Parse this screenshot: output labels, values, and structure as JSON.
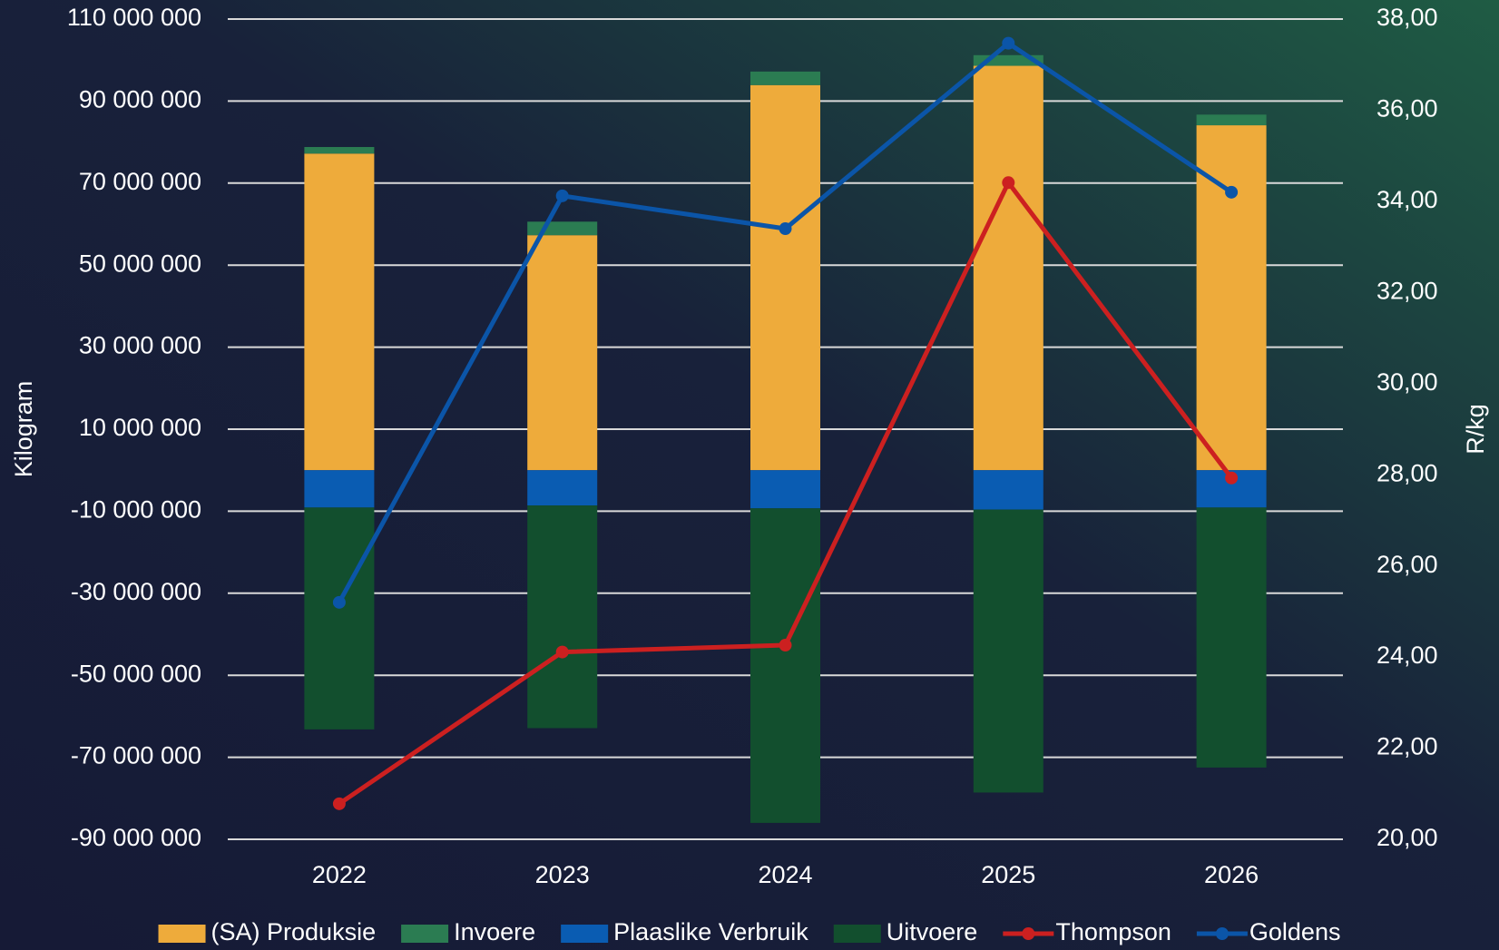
{
  "chart_data": {
    "type": "bar",
    "stacked": true,
    "y_label": "Kilogram",
    "y2_label": "R/kg",
    "categories": [
      "2022",
      "2023",
      "2024",
      "2025",
      "2026"
    ],
    "series": [
      {
        "name": "(SA) Produksie",
        "color": "#eeab3b",
        "values": [
          77200000,
          57300000,
          93900000,
          98600000,
          84100000
        ]
      },
      {
        "name": "Invoere",
        "color": "#2b7c52",
        "values": [
          1600000,
          3300000,
          3300000,
          2600000,
          2600000
        ]
      },
      {
        "name": "Plaaslike Verbruik",
        "color": "#0a5cb2",
        "values": [
          -9100000,
          -8600000,
          -9300000,
          -9600000,
          -9100000
        ]
      },
      {
        "name": "Uitvoere",
        "color": "#124f2e",
        "values": [
          -54100000,
          -54300000,
          -76700000,
          -69000000,
          -63400000
        ]
      },
      {
        "name": "Thompson",
        "color": "#cc2020",
        "type": "line",
        "axis": "y2",
        "values": [
          20.78,
          24.11,
          24.26,
          34.41,
          27.93
        ]
      },
      {
        "name": "Goldens",
        "color": "#0b55a8",
        "type": "line",
        "axis": "y2",
        "values": [
          25.2,
          34.12,
          33.4,
          37.47,
          34.2
        ]
      }
    ],
    "ylim": [
      -90000000,
      110000000
    ],
    "yticks": [
      {
        "value": 110000000,
        "label": "110 000 000"
      },
      {
        "value": 90000000,
        "label": "90 000 000"
      },
      {
        "value": 70000000,
        "label": "70 000 000"
      },
      {
        "value": 50000000,
        "label": "50 000 000"
      },
      {
        "value": 30000000,
        "label": "30 000 000"
      },
      {
        "value": 10000000,
        "label": "10 000 000"
      },
      {
        "value": -10000000,
        "label": "-10 000 000"
      },
      {
        "value": -30000000,
        "label": "-30 000 000"
      },
      {
        "value": -50000000,
        "label": "-50 000 000"
      },
      {
        "value": -70000000,
        "label": "-70 000 000"
      },
      {
        "value": -90000000,
        "label": "-90 000 000"
      }
    ],
    "y2lim": [
      20,
      38
    ],
    "y2ticks": [
      {
        "value": 38,
        "label": "38,00"
      },
      {
        "value": 36,
        "label": "36,00"
      },
      {
        "value": 34,
        "label": "34,00"
      },
      {
        "value": 32,
        "label": "32,00"
      },
      {
        "value": 30,
        "label": "30,00"
      },
      {
        "value": 28,
        "label": "28,00"
      },
      {
        "value": 26,
        "label": "26,00"
      },
      {
        "value": 24,
        "label": "24,00"
      },
      {
        "value": 22,
        "label": "22,00"
      },
      {
        "value": 20,
        "label": "20,00"
      }
    ],
    "grid": true,
    "legend": "bottom"
  }
}
